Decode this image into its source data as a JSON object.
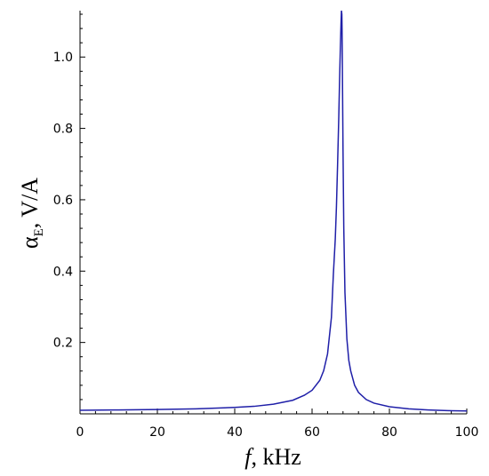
{
  "chart_data": {
    "type": "line",
    "xlabel_italic": "f",
    "xlabel_rest": ", kHz",
    "ylabel_symbol": "α",
    "ylabel_sub": "E",
    "ylabel_rest": ",  V/A",
    "xlim": [
      0,
      100
    ],
    "ylim": [
      0,
      1.13
    ],
    "x_ticks": [
      0,
      20,
      40,
      60,
      80,
      100
    ],
    "x_tick_labels": [
      "0",
      "20",
      "40",
      "60",
      "80",
      "100"
    ],
    "x_minor_step": 4,
    "y_ticks": [
      0.2,
      0.4,
      0.6,
      0.8,
      1.0
    ],
    "y_tick_labels": [
      "0.2",
      "0.4",
      "0.6",
      "0.8",
      "1.0"
    ],
    "y_minor_step": 0.04,
    "grid": false,
    "line_color": "#1f1fa8",
    "series": [
      {
        "x": [
          0,
          10,
          20,
          30,
          40,
          45,
          50,
          55,
          58,
          60,
          62,
          63,
          64,
          65,
          65.5,
          66,
          66.3,
          66.6,
          66.9,
          67.1,
          67.3,
          67.5,
          67.6,
          67.7,
          67.75,
          67.8,
          67.9,
          68.0,
          68.2,
          68.5,
          69,
          69.5,
          70,
          71,
          72,
          74,
          76,
          80,
          85,
          90,
          95,
          100
        ],
        "y": [
          0.01,
          0.011,
          0.012,
          0.014,
          0.018,
          0.021,
          0.027,
          0.038,
          0.052,
          0.066,
          0.094,
          0.121,
          0.168,
          0.27,
          0.39,
          0.49,
          0.58,
          0.7,
          0.83,
          0.93,
          1.02,
          1.1,
          1.13,
          1.12,
          1.08,
          1.02,
          0.88,
          0.74,
          0.52,
          0.34,
          0.21,
          0.15,
          0.12,
          0.08,
          0.06,
          0.04,
          0.03,
          0.02,
          0.014,
          0.011,
          0.009,
          0.008
        ]
      }
    ]
  }
}
